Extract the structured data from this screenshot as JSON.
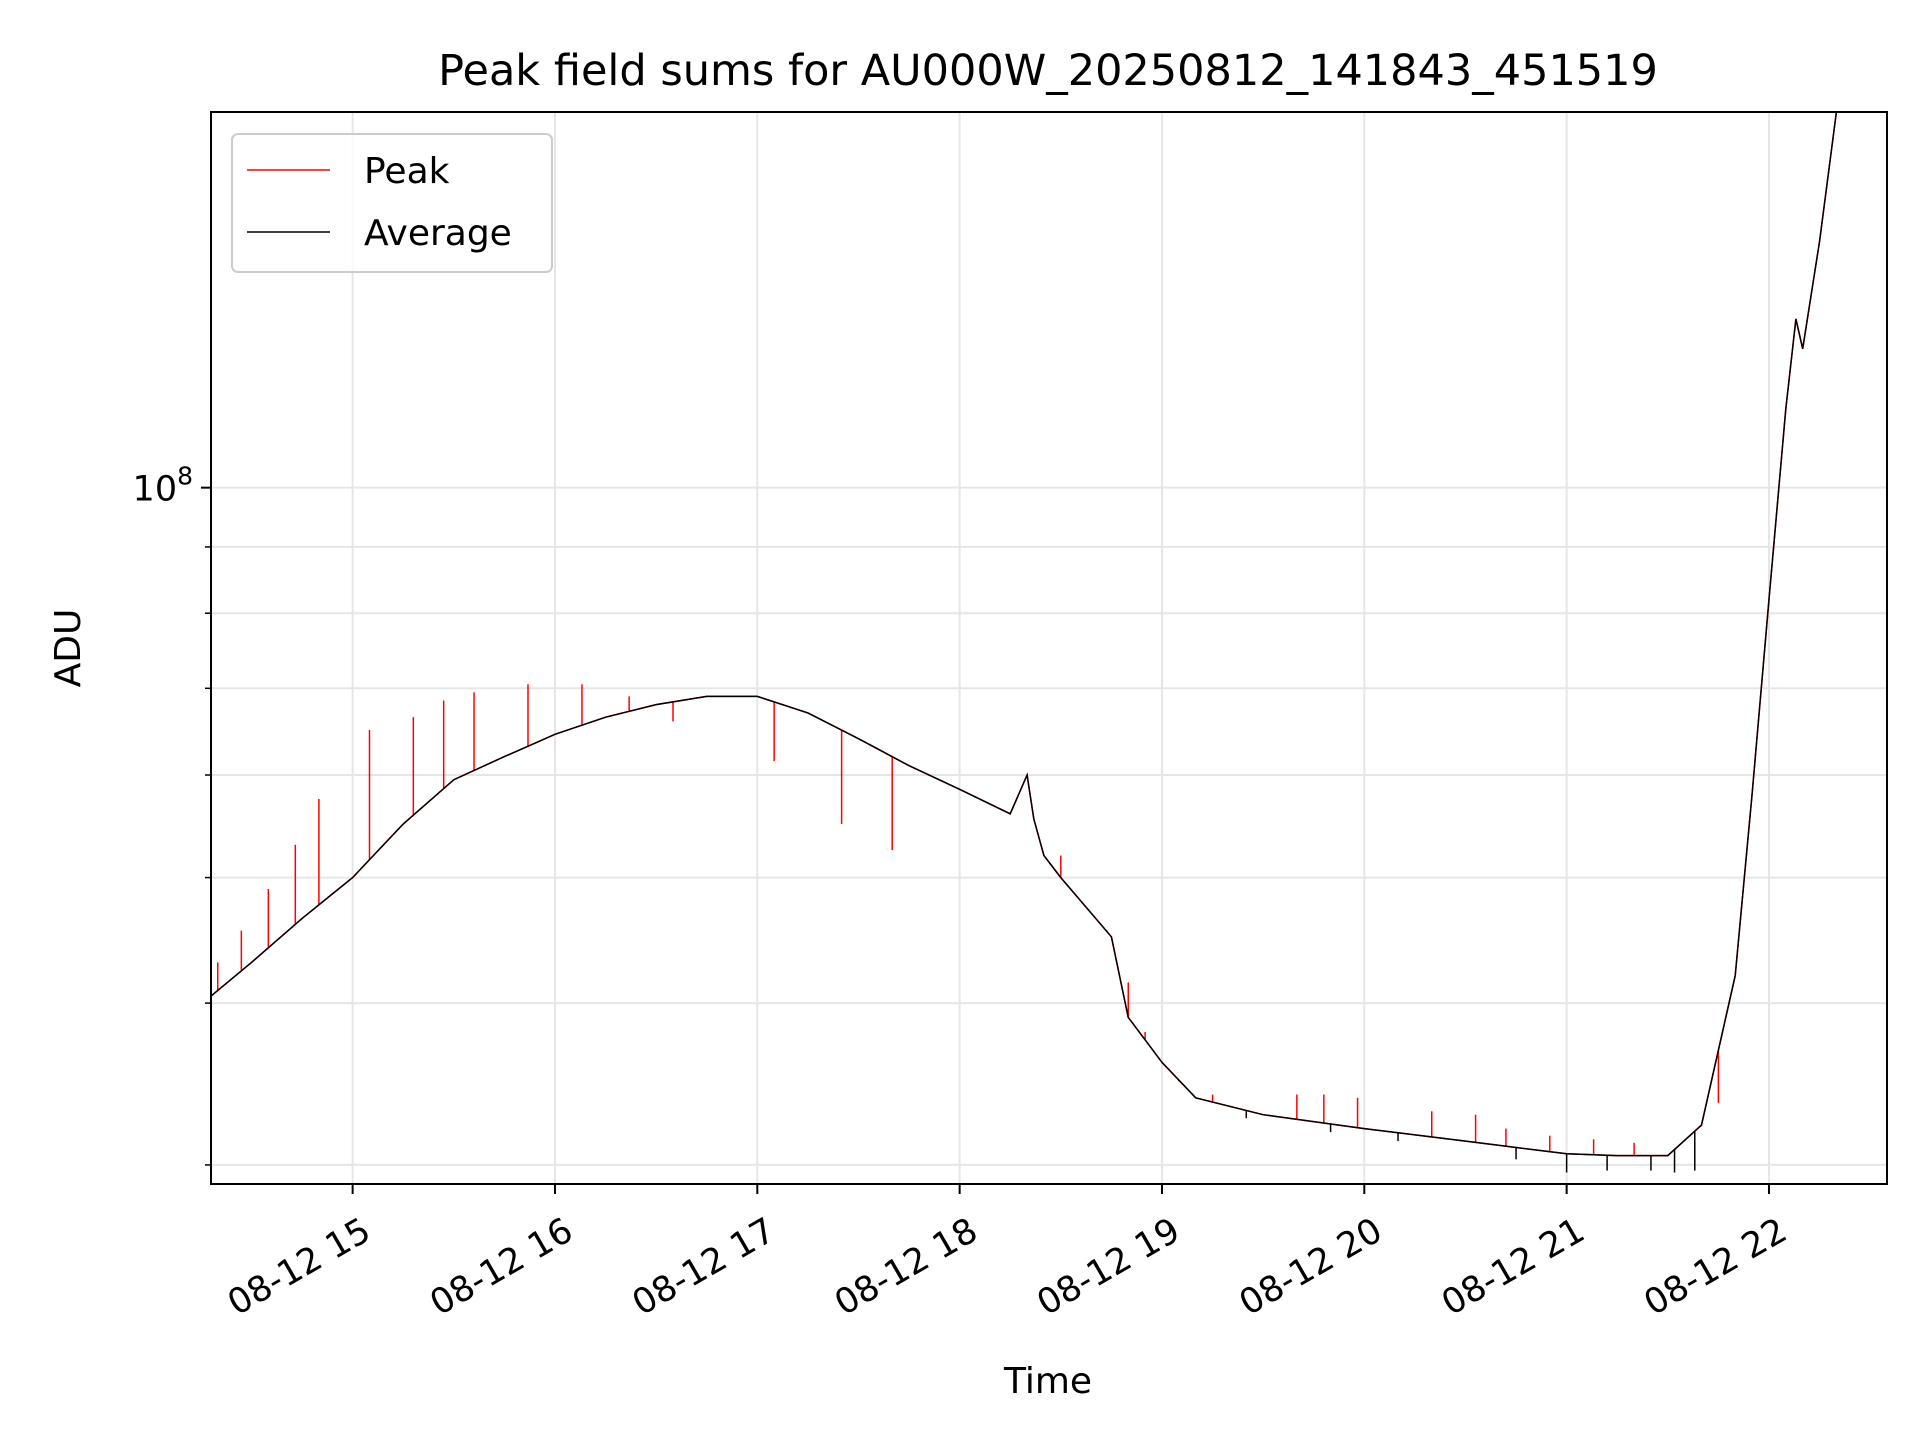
{
  "chart_data": {
    "type": "line",
    "title": "Peak field sums for AU000W_20250812_141843_451519",
    "xlabel": "Time",
    "ylabel": "ADU",
    "yscale": "log",
    "grid": true,
    "legend_position": "top-left",
    "x_tick_labels": [
      "08-12 15",
      "08-12 16",
      "08-12 17",
      "08-12 18",
      "08-12 19",
      "08-12 20",
      "08-12 21",
      "08-12 22"
    ],
    "x_ticks": [
      "2025-08-12 15:00",
      "2025-08-12 16:00",
      "2025-08-12 17:00",
      "2025-08-12 18:00",
      "2025-08-12 19:00",
      "2025-08-12 20:00",
      "2025-08-12 21:00",
      "2025-08-12 22:00"
    ],
    "xlim": [
      "2025-08-12 14:18",
      "2025-08-12 22:35"
    ],
    "y_major_tick": {
      "value": 100000000,
      "label_base": "10",
      "label_exp": "8"
    },
    "ylim": [
      29000000,
      195000000
    ],
    "series": [
      {
        "name": "Peak",
        "color": "#ff0000",
        "x": [
          "2025-08-12 14:18",
          "2025-08-12 14:30",
          "2025-08-12 14:45",
          "2025-08-12 15:00",
          "2025-08-12 15:15",
          "2025-08-12 15:30",
          "2025-08-12 15:45",
          "2025-08-12 16:00",
          "2025-08-12 16:15",
          "2025-08-12 16:30",
          "2025-08-12 16:45",
          "2025-08-12 17:00",
          "2025-08-12 17:15",
          "2025-08-12 17:30",
          "2025-08-12 17:45",
          "2025-08-12 18:00",
          "2025-08-12 18:15",
          "2025-08-12 18:20",
          "2025-08-12 18:22",
          "2025-08-12 18:25",
          "2025-08-12 18:30",
          "2025-08-12 18:45",
          "2025-08-12 18:50",
          "2025-08-12 19:00",
          "2025-08-12 19:10",
          "2025-08-12 19:30",
          "2025-08-12 20:00",
          "2025-08-12 20:30",
          "2025-08-12 21:00",
          "2025-08-12 21:15",
          "2025-08-12 21:30",
          "2025-08-12 21:40",
          "2025-08-12 21:50",
          "2025-08-12 21:55",
          "2025-08-12 22:00",
          "2025-08-12 22:05",
          "2025-08-12 22:08",
          "2025-08-12 22:10",
          "2025-08-12 22:15",
          "2025-08-12 22:20"
        ],
        "values": [
          40500000,
          43000000,
          46500000,
          50000000,
          55000000,
          59500000,
          62000000,
          64500000,
          66500000,
          68000000,
          69000000,
          69000000,
          67000000,
          64000000,
          61000000,
          58500000,
          56000000,
          60000000,
          55500000,
          52000000,
          50000000,
          45000000,
          39000000,
          36000000,
          33800000,
          32800000,
          32000000,
          31300000,
          30600000,
          30500000,
          30500000,
          32200000,
          42000000,
          58000000,
          82000000,
          115000000,
          135000000,
          128000000,
          155000000,
          195000000
        ],
        "spike_times": [
          "2025-08-12 14:20",
          "2025-08-12 14:27",
          "2025-08-12 14:35",
          "2025-08-12 14:43",
          "2025-08-12 14:50",
          "2025-08-12 15:05",
          "2025-08-12 15:18",
          "2025-08-12 15:27",
          "2025-08-12 15:36",
          "2025-08-12 15:52",
          "2025-08-12 16:08",
          "2025-08-12 16:22",
          "2025-08-12 16:35",
          "2025-08-12 17:05",
          "2025-08-12 17:25",
          "2025-08-12 17:40",
          "2025-08-12 18:30",
          "2025-08-12 18:50",
          "2025-08-12 18:55",
          "2025-08-12 19:05",
          "2025-08-12 19:15",
          "2025-08-12 19:40",
          "2025-08-12 19:48",
          "2025-08-12 19:58",
          "2025-08-12 20:20",
          "2025-08-12 20:33",
          "2025-08-12 20:42",
          "2025-08-12 20:55",
          "2025-08-12 21:08",
          "2025-08-12 21:20",
          "2025-08-12 21:35",
          "2025-08-12 21:45"
        ],
        "spike_values": [
          43000000,
          45500000,
          49000000,
          53000000,
          57500000,
          65000000,
          66500000,
          68500000,
          69500000,
          70500000,
          70500000,
          69000000,
          66000000,
          61500000,
          55000000,
          52500000,
          52000000,
          41500000,
          38000000,
          34800000,
          34000000,
          34000000,
          34000000,
          33800000,
          33000000,
          32800000,
          32000000,
          31600000,
          31400000,
          31200000,
          31300000,
          33500000
        ]
      },
      {
        "name": "Average",
        "color": "#000000",
        "x": [
          "2025-08-12 14:18",
          "2025-08-12 14:30",
          "2025-08-12 14:45",
          "2025-08-12 15:00",
          "2025-08-12 15:15",
          "2025-08-12 15:30",
          "2025-08-12 15:45",
          "2025-08-12 16:00",
          "2025-08-12 16:15",
          "2025-08-12 16:30",
          "2025-08-12 16:45",
          "2025-08-12 17:00",
          "2025-08-12 17:15",
          "2025-08-12 17:30",
          "2025-08-12 17:45",
          "2025-08-12 18:00",
          "2025-08-12 18:15",
          "2025-08-12 18:20",
          "2025-08-12 18:22",
          "2025-08-12 18:25",
          "2025-08-12 18:30",
          "2025-08-12 18:45",
          "2025-08-12 18:50",
          "2025-08-12 19:00",
          "2025-08-12 19:10",
          "2025-08-12 19:30",
          "2025-08-12 20:00",
          "2025-08-12 20:30",
          "2025-08-12 21:00",
          "2025-08-12 21:15",
          "2025-08-12 21:30",
          "2025-08-12 21:40",
          "2025-08-12 21:50",
          "2025-08-12 21:55",
          "2025-08-12 22:00",
          "2025-08-12 22:05",
          "2025-08-12 22:08",
          "2025-08-12 22:10",
          "2025-08-12 22:15",
          "2025-08-12 22:20"
        ],
        "values": [
          40500000,
          43000000,
          46500000,
          50000000,
          55000000,
          59500000,
          62000000,
          64500000,
          66500000,
          68000000,
          69000000,
          69000000,
          67000000,
          64000000,
          61000000,
          58500000,
          56000000,
          60000000,
          55500000,
          52000000,
          50000000,
          45000000,
          39000000,
          36000000,
          33800000,
          32800000,
          32000000,
          31300000,
          30600000,
          30500000,
          30500000,
          32200000,
          42000000,
          58000000,
          82000000,
          115000000,
          135000000,
          128000000,
          155000000,
          195000000
        ],
        "dip_times": [
          "2025-08-12 19:25",
          "2025-08-12 19:50",
          "2025-08-12 20:10",
          "2025-08-12 20:45",
          "2025-08-12 21:00",
          "2025-08-12 21:12",
          "2025-08-12 21:25",
          "2025-08-12 21:32",
          "2025-08-12 21:38"
        ],
        "dip_values": [
          32600000,
          31800000,
          31300000,
          30300000,
          29600000,
          29700000,
          29700000,
          29600000,
          29700000
        ]
      }
    ]
  }
}
